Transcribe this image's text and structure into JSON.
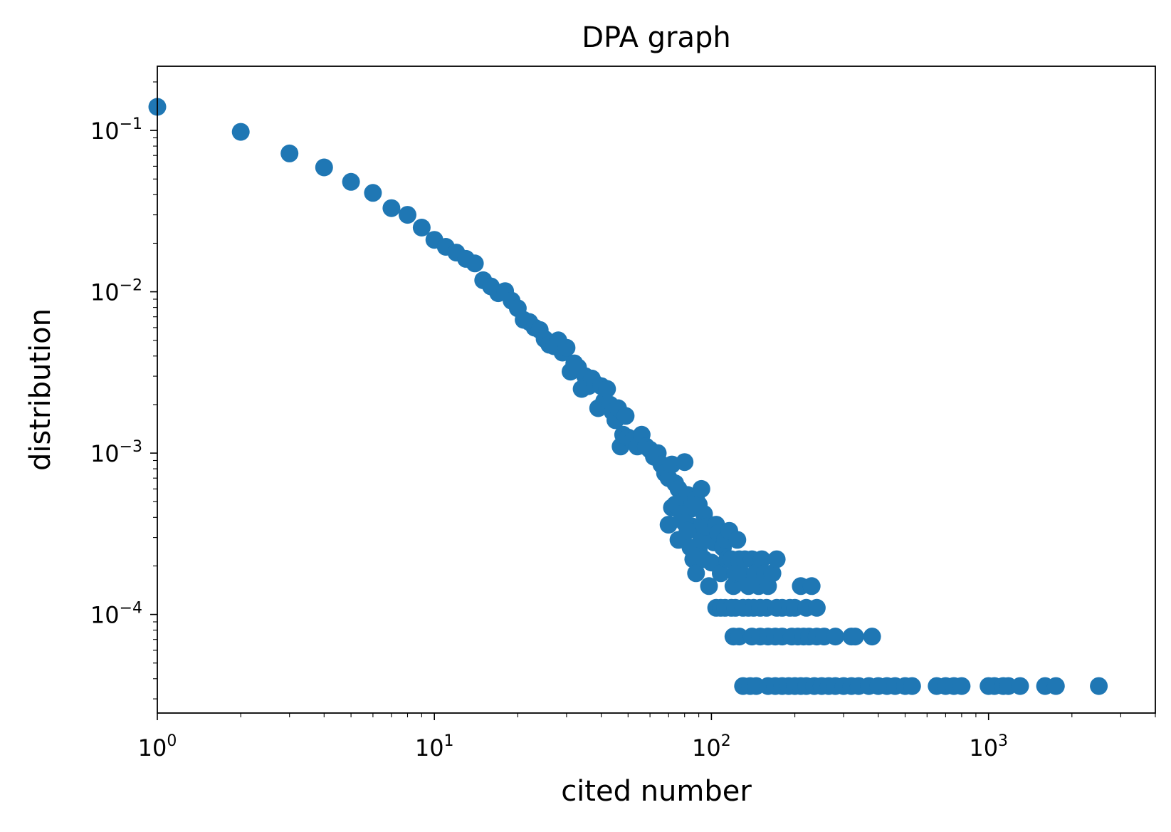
{
  "chart_data": {
    "type": "scatter",
    "title": "DPA graph",
    "xlabel": "cited number",
    "ylabel": "distribution",
    "xscale": "log",
    "yscale": "log",
    "xlim": [
      1,
      4000
    ],
    "ylim": [
      2.45e-05,
      0.25
    ],
    "grid": false,
    "marker_color": "#1f77b4",
    "x_ticks": [
      {
        "base": "10",
        "exp": "0"
      },
      {
        "base": "10",
        "exp": "1"
      },
      {
        "base": "10",
        "exp": "2"
      },
      {
        "base": "10",
        "exp": "3"
      }
    ],
    "y_ticks": [
      {
        "base": "10",
        "exp": "−4"
      },
      {
        "base": "10",
        "exp": "−3"
      },
      {
        "base": "10",
        "exp": "−2"
      },
      {
        "base": "10",
        "exp": "−1"
      }
    ],
    "points": [
      [
        1,
        0.14
      ],
      [
        2,
        0.098
      ],
      [
        3,
        0.072
      ],
      [
        4,
        0.059
      ],
      [
        5,
        0.048
      ],
      [
        6,
        0.041
      ],
      [
        7,
        0.033
      ],
      [
        8,
        0.03
      ],
      [
        9,
        0.025
      ],
      [
        10,
        0.021
      ],
      [
        11,
        0.019
      ],
      [
        12,
        0.0175
      ],
      [
        13,
        0.016
      ],
      [
        14,
        0.015
      ],
      [
        15,
        0.0118
      ],
      [
        16,
        0.0108
      ],
      [
        17,
        0.0098
      ],
      [
        18,
        0.0101
      ],
      [
        19,
        0.0088
      ],
      [
        20,
        0.0079
      ],
      [
        21,
        0.0067
      ],
      [
        22,
        0.0065
      ],
      [
        23,
        0.006
      ],
      [
        24,
        0.0058
      ],
      [
        25,
        0.0051
      ],
      [
        26,
        0.0047
      ],
      [
        27,
        0.0046
      ],
      [
        28,
        0.005
      ],
      [
        29,
        0.0042
      ],
      [
        30,
        0.0045
      ],
      [
        31,
        0.0032
      ],
      [
        32,
        0.0036
      ],
      [
        33,
        0.0034
      ],
      [
        34,
        0.0025
      ],
      [
        35,
        0.003
      ],
      [
        36,
        0.0026
      ],
      [
        37,
        0.0029
      ],
      [
        38,
        0.0027
      ],
      [
        39,
        0.0019
      ],
      [
        40,
        0.0026
      ],
      [
        41,
        0.0021
      ],
      [
        42,
        0.0025
      ],
      [
        43,
        0.002
      ],
      [
        44,
        0.0018
      ],
      [
        45,
        0.0016
      ],
      [
        46,
        0.0019
      ],
      [
        47,
        0.0011
      ],
      [
        48,
        0.0013
      ],
      [
        49,
        0.0017
      ],
      [
        50,
        0.00125
      ],
      [
        52,
        0.0012
      ],
      [
        54,
        0.0011
      ],
      [
        56,
        0.0013
      ],
      [
        58,
        0.0011
      ],
      [
        60,
        0.00105
      ],
      [
        62,
        0.00095
      ],
      [
        64,
        0.001
      ],
      [
        66,
        0.00085
      ],
      [
        68,
        0.00075
      ],
      [
        70,
        0.0007
      ],
      [
        72,
        0.00085
      ],
      [
        74,
        0.00065
      ],
      [
        76,
        0.0006
      ],
      [
        78,
        0.0005
      ],
      [
        80,
        0.00088
      ],
      [
        82,
        0.00055
      ],
      [
        84,
        0.00045
      ],
      [
        86,
        0.00035
      ],
      [
        88,
        0.00052
      ],
      [
        90,
        0.00048
      ],
      [
        92,
        0.0006
      ],
      [
        94,
        0.00042
      ],
      [
        96,
        0.00036
      ],
      [
        70,
        0.00036
      ],
      [
        72,
        0.00046
      ],
      [
        74,
        0.00048
      ],
      [
        76,
        0.00029
      ],
      [
        78,
        0.00042
      ],
      [
        80,
        0.00037
      ],
      [
        82,
        0.00033
      ],
      [
        84,
        0.00026
      ],
      [
        86,
        0.00022
      ],
      [
        88,
        0.00018
      ],
      [
        90,
        0.00025
      ],
      [
        92,
        0.00029
      ],
      [
        94,
        0.00022
      ],
      [
        96,
        0.00035
      ],
      [
        98,
        0.00015
      ],
      [
        100,
        0.00021
      ],
      [
        102,
        0.00028
      ],
      [
        104,
        0.00036
      ],
      [
        106,
        0.00032
      ],
      [
        108,
        0.00018
      ],
      [
        110,
        0.00026
      ],
      [
        112,
        0.00029
      ],
      [
        114,
        0.00022
      ],
      [
        116,
        0.00033
      ],
      [
        118,
        0.00022
      ],
      [
        120,
        0.00015
      ],
      [
        122,
        0.00018
      ],
      [
        124,
        0.00029
      ],
      [
        126,
        0.00022
      ],
      [
        128,
        0.00018
      ],
      [
        132,
        0.00022
      ],
      [
        136,
        0.00015
      ],
      [
        140,
        0.00022
      ],
      [
        144,
        0.00018
      ],
      [
        148,
        0.00015
      ],
      [
        152,
        0.00022
      ],
      [
        156,
        0.00018
      ],
      [
        160,
        0.00015
      ],
      [
        166,
        0.00018
      ],
      [
        172,
        0.00022
      ],
      [
        104,
        0.00011
      ],
      [
        108,
        0.00011
      ],
      [
        112,
        0.00011
      ],
      [
        118,
        0.00011
      ],
      [
        122,
        0.00011
      ],
      [
        130,
        0.00011
      ],
      [
        136,
        0.00011
      ],
      [
        142,
        0.00011
      ],
      [
        150,
        0.00011
      ],
      [
        158,
        0.00011
      ],
      [
        172,
        0.00011
      ],
      [
        180,
        0.00011
      ],
      [
        192,
        0.00011
      ],
      [
        200,
        0.00011
      ],
      [
        210,
        0.00015
      ],
      [
        220,
        0.00011
      ],
      [
        230,
        0.00015
      ],
      [
        240,
        0.00011
      ],
      [
        120,
        7.3e-05
      ],
      [
        126,
        7.3e-05
      ],
      [
        140,
        7.3e-05
      ],
      [
        150,
        7.3e-05
      ],
      [
        160,
        7.3e-05
      ],
      [
        170,
        7.3e-05
      ],
      [
        180,
        7.3e-05
      ],
      [
        195,
        7.3e-05
      ],
      [
        205,
        7.3e-05
      ],
      [
        215,
        7.3e-05
      ],
      [
        225,
        7.3e-05
      ],
      [
        240,
        7.3e-05
      ],
      [
        255,
        7.3e-05
      ],
      [
        280,
        7.3e-05
      ],
      [
        320,
        7.3e-05
      ],
      [
        330,
        7.3e-05
      ],
      [
        380,
        7.3e-05
      ],
      [
        130,
        3.6e-05
      ],
      [
        138,
        3.6e-05
      ],
      [
        145,
        3.6e-05
      ],
      [
        160,
        3.6e-05
      ],
      [
        170,
        3.6e-05
      ],
      [
        180,
        3.6e-05
      ],
      [
        190,
        3.6e-05
      ],
      [
        200,
        3.6e-05
      ],
      [
        210,
        3.6e-05
      ],
      [
        220,
        3.6e-05
      ],
      [
        235,
        3.6e-05
      ],
      [
        250,
        3.6e-05
      ],
      [
        265,
        3.6e-05
      ],
      [
        280,
        3.6e-05
      ],
      [
        300,
        3.6e-05
      ],
      [
        320,
        3.6e-05
      ],
      [
        340,
        3.6e-05
      ],
      [
        370,
        3.6e-05
      ],
      [
        400,
        3.6e-05
      ],
      [
        430,
        3.6e-05
      ],
      [
        460,
        3.6e-05
      ],
      [
        500,
        3.6e-05
      ],
      [
        530,
        3.6e-05
      ],
      [
        650,
        3.6e-05
      ],
      [
        700,
        3.6e-05
      ],
      [
        750,
        3.6e-05
      ],
      [
        800,
        3.6e-05
      ],
      [
        1000,
        3.6e-05
      ],
      [
        1050,
        3.6e-05
      ],
      [
        1130,
        3.6e-05
      ],
      [
        1180,
        3.6e-05
      ],
      [
        1300,
        3.6e-05
      ],
      [
        1600,
        3.6e-05
      ],
      [
        1750,
        3.6e-05
      ],
      [
        2500,
        3.6e-05
      ]
    ]
  }
}
